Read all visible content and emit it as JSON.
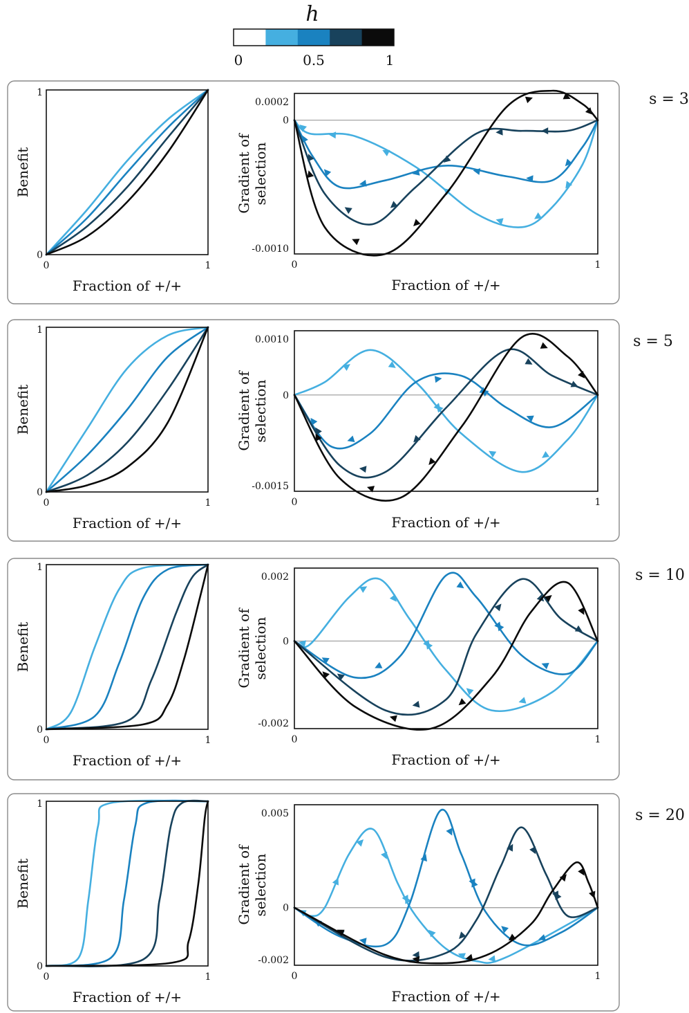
{
  "colorbar": {
    "title": "h",
    "ticks": [
      "0",
      "0.5",
      "1"
    ],
    "colors": [
      "#ffffff",
      "#45afe0",
      "#1a82c0",
      "#18425c",
      "#0b0b0b"
    ]
  },
  "series_colors": {
    "h0.25": "#45afe0",
    "h0.5": "#1a82c0",
    "h0.75": "#18425c",
    "h1": "#0b0b0b"
  },
  "chart_data": [
    {
      "panel": "s = 3",
      "type": "line",
      "xlabel": "Fraction of +/+",
      "ylabel": "Benefit",
      "xticks": [
        "0",
        "1"
      ],
      "yticks": [
        "0",
        "1"
      ],
      "xlim": [
        0,
        1
      ],
      "ylim": [
        0,
        1
      ],
      "series": [
        {
          "h": 0.25,
          "color": "#45afe0",
          "x": [
            0,
            0.25,
            0.5,
            0.75,
            1
          ],
          "y": [
            0,
            0.27,
            0.57,
            0.82,
            1
          ]
        },
        {
          "h": 0.5,
          "color": "#1a82c0",
          "x": [
            0,
            0.25,
            0.5,
            0.75,
            1
          ],
          "y": [
            0,
            0.22,
            0.5,
            0.77,
            1
          ]
        },
        {
          "h": 0.75,
          "color": "#18425c",
          "x": [
            0,
            0.25,
            0.5,
            0.75,
            1
          ],
          "y": [
            0,
            0.17,
            0.41,
            0.71,
            1
          ]
        },
        {
          "h": 1,
          "color": "#0b0b0b",
          "x": [
            0,
            0.25,
            0.5,
            0.75,
            1
          ],
          "y": [
            0,
            0.11,
            0.32,
            0.62,
            1
          ]
        }
      ]
    },
    {
      "panel": "s = 3",
      "type": "line",
      "xlabel": "Fraction of +/+",
      "ylabel": "Gradient of selection",
      "xticks": [
        "0",
        "1"
      ],
      "yticks": [
        "0.0002",
        "0",
        "-0.0010"
      ],
      "xlim": [
        0,
        1
      ],
      "ylim": [
        -0.001,
        0.0002
      ],
      "series": [
        {
          "h": 0.25,
          "color": "#45afe0",
          "x": [
            0,
            0.05,
            0.2,
            0.4,
            0.6,
            0.75,
            0.85,
            0.95,
            1
          ],
          "y": [
            0,
            -0.0001,
            -0.00012,
            -0.00035,
            -0.0007,
            -0.0008,
            -0.00065,
            -0.00033,
            0
          ]
        },
        {
          "h": 0.5,
          "color": "#1a82c0",
          "x": [
            0,
            0.06,
            0.15,
            0.3,
            0.5,
            0.7,
            0.85,
            0.95,
            1
          ],
          "y": [
            0,
            -0.00027,
            -0.0005,
            -0.00045,
            -0.00034,
            -0.00042,
            -0.00045,
            -0.0002,
            0
          ]
        },
        {
          "h": 0.75,
          "color": "#18425c",
          "x": [
            0,
            0.1,
            0.25,
            0.4,
            0.6,
            0.75,
            0.9,
            1
          ],
          "y": [
            0,
            -0.00055,
            -0.00078,
            -0.0005,
            -0.0001,
            -8e-05,
            -8e-05,
            0
          ]
        },
        {
          "h": 1,
          "color": "#0b0b0b",
          "x": [
            0,
            0.1,
            0.3,
            0.5,
            0.7,
            0.85,
            0.95,
            1
          ],
          "y": [
            0,
            -0.0008,
            -0.001,
            -0.00055,
            0.0001,
            0.00022,
            0.00012,
            0
          ]
        }
      ]
    },
    {
      "panel": "s = 5",
      "type": "line",
      "xlabel": "Fraction of +/+",
      "ylabel": "Benefit",
      "xticks": [
        "0",
        "1"
      ],
      "yticks": [
        "0",
        "1"
      ],
      "xlim": [
        0,
        1
      ],
      "ylim": [
        0,
        1
      ],
      "series": [
        {
          "h": 0.25,
          "color": "#45afe0",
          "x": [
            0,
            0.25,
            0.5,
            0.75,
            1
          ],
          "y": [
            0,
            0.38,
            0.75,
            0.95,
            1
          ]
        },
        {
          "h": 0.5,
          "color": "#1a82c0",
          "x": [
            0,
            0.25,
            0.5,
            0.75,
            1
          ],
          "y": [
            0,
            0.22,
            0.5,
            0.82,
            1
          ]
        },
        {
          "h": 0.75,
          "color": "#18425c",
          "x": [
            0,
            0.25,
            0.5,
            0.75,
            1
          ],
          "y": [
            0,
            0.1,
            0.3,
            0.62,
            1
          ]
        },
        {
          "h": 1,
          "color": "#0b0b0b",
          "x": [
            0,
            0.25,
            0.5,
            0.75,
            1
          ],
          "y": [
            0,
            0.04,
            0.15,
            0.42,
            1
          ]
        }
      ]
    },
    {
      "panel": "s = 5",
      "type": "line",
      "xlabel": "Fraction of +/+",
      "ylabel": "Gradient of selection",
      "xticks": [
        "0",
        "1"
      ],
      "yticks": [
        "0.0010",
        "0",
        "-0.0015"
      ],
      "xlim": [
        0,
        1
      ],
      "ylim": [
        -0.0015,
        0.001
      ],
      "series": [
        {
          "h": 0.25,
          "color": "#45afe0",
          "x": [
            0,
            0.1,
            0.25,
            0.4,
            0.55,
            0.75,
            0.9,
            1
          ],
          "y": [
            0,
            0.0002,
            0.0007,
            0.0002,
            -0.0006,
            -0.0012,
            -0.0007,
            0
          ]
        },
        {
          "h": 0.5,
          "color": "#1a82c0",
          "x": [
            0,
            0.12,
            0.25,
            0.4,
            0.55,
            0.7,
            0.85,
            1
          ],
          "y": [
            0,
            -0.0008,
            -0.0006,
            0.0002,
            0.0003,
            -0.0002,
            -0.0005,
            0
          ]
        },
        {
          "h": 0.75,
          "color": "#18425c",
          "x": [
            0,
            0.15,
            0.3,
            0.5,
            0.7,
            0.85,
            1
          ],
          "y": [
            0,
            -0.0011,
            -0.0012,
            -0.0002,
            0.0007,
            0.0003,
            0
          ]
        },
        {
          "h": 1,
          "color": "#0b0b0b",
          "x": [
            0,
            0.15,
            0.35,
            0.55,
            0.75,
            0.9,
            1
          ],
          "y": [
            0,
            -0.0013,
            -0.0016,
            -0.0005,
            0.0009,
            0.0006,
            0
          ]
        }
      ]
    },
    {
      "panel": "s = 10",
      "type": "line",
      "xlabel": "Fraction of +/+",
      "ylabel": "Benefit",
      "xticks": [
        "0",
        "1"
      ],
      "yticks": [
        "0",
        "1"
      ],
      "xlim": [
        0,
        1
      ],
      "ylim": [
        0,
        1
      ],
      "series": [
        {
          "h": 0.25,
          "color": "#45afe0",
          "x": [
            0,
            0.15,
            0.3,
            0.45,
            0.6,
            1
          ],
          "y": [
            0,
            0.1,
            0.5,
            0.85,
            0.98,
            1
          ]
        },
        {
          "h": 0.5,
          "color": "#1a82c0",
          "x": [
            0,
            0.3,
            0.45,
            0.6,
            0.75,
            1
          ],
          "y": [
            0,
            0.08,
            0.4,
            0.8,
            0.97,
            1
          ]
        },
        {
          "h": 0.75,
          "color": "#18425c",
          "x": [
            0,
            0.5,
            0.65,
            0.8,
            0.9,
            1
          ],
          "y": [
            0,
            0.05,
            0.3,
            0.7,
            0.92,
            1
          ]
        },
        {
          "h": 1,
          "color": "#0b0b0b",
          "x": [
            0,
            0.6,
            0.75,
            0.85,
            0.95,
            1
          ],
          "y": [
            0,
            0.03,
            0.15,
            0.42,
            0.8,
            1
          ]
        }
      ]
    },
    {
      "panel": "s = 10",
      "type": "line",
      "xlabel": "Fraction of +/+",
      "ylabel": "Gradient of selection",
      "xticks": [
        "0",
        "1"
      ],
      "yticks": [
        "0.002",
        "0",
        "-0.002"
      ],
      "xlim": [
        0,
        1
      ],
      "ylim": [
        -0.0024,
        0.002
      ],
      "series": [
        {
          "h": 0.25,
          "color": "#45afe0",
          "x": [
            0,
            0.05,
            0.18,
            0.28,
            0.38,
            0.5,
            0.65,
            0.85,
            1
          ],
          "y": [
            0,
            -0.0001,
            0.0012,
            0.0017,
            0.0006,
            -0.0008,
            -0.0019,
            -0.0014,
            0
          ]
        },
        {
          "h": 0.5,
          "color": "#1a82c0",
          "x": [
            0,
            0.2,
            0.35,
            0.5,
            0.6,
            0.75,
            0.9,
            1
          ],
          "y": [
            0,
            -0.001,
            -0.0004,
            0.0018,
            0.0012,
            -0.0004,
            -0.0009,
            0
          ]
        },
        {
          "h": 0.75,
          "color": "#18425c",
          "x": [
            0,
            0.3,
            0.5,
            0.6,
            0.75,
            0.88,
            1
          ],
          "y": [
            0,
            -0.0019,
            -0.0016,
            0.0002,
            0.0017,
            0.0006,
            0
          ]
        },
        {
          "h": 1,
          "color": "#0b0b0b",
          "x": [
            0,
            0.2,
            0.45,
            0.65,
            0.78,
            0.9,
            1
          ],
          "y": [
            0,
            -0.0018,
            -0.0024,
            -0.001,
            0.0008,
            0.0016,
            0
          ]
        }
      ]
    },
    {
      "panel": "s = 20",
      "type": "line",
      "xlabel": "Fraction of +/+",
      "ylabel": "Benefit",
      "xticks": [
        "0",
        "1"
      ],
      "yticks": [
        "0",
        "1"
      ],
      "xlim": [
        0,
        1
      ],
      "ylim": [
        0,
        1
      ],
      "series": [
        {
          "h": 0.25,
          "color": "#45afe0",
          "x": [
            0,
            0.2,
            0.26,
            0.32,
            0.4,
            1
          ],
          "y": [
            0,
            0.05,
            0.4,
            0.85,
            0.99,
            1
          ]
        },
        {
          "h": 0.5,
          "color": "#1a82c0",
          "x": [
            0,
            0.4,
            0.48,
            0.55,
            0.62,
            1
          ],
          "y": [
            0,
            0.05,
            0.4,
            0.85,
            0.99,
            1
          ]
        },
        {
          "h": 0.75,
          "color": "#18425c",
          "x": [
            0,
            0.6,
            0.7,
            0.77,
            0.84,
            1
          ],
          "y": [
            0,
            0.04,
            0.4,
            0.85,
            0.99,
            1
          ]
        },
        {
          "h": 1,
          "color": "#0b0b0b",
          "x": [
            0,
            0.78,
            0.88,
            0.94,
            0.98,
            1
          ],
          "y": [
            0,
            0.02,
            0.15,
            0.5,
            0.9,
            1
          ]
        }
      ]
    },
    {
      "panel": "s = 20",
      "type": "line",
      "xlabel": "Fraction of +/+",
      "ylabel": "Gradient of selection",
      "xticks": [
        "0",
        "1"
      ],
      "yticks": [
        "0.005",
        "0",
        "-0.002"
      ],
      "xlim": [
        0,
        1
      ],
      "ylim": [
        -0.0028,
        0.005
      ],
      "series": [
        {
          "h": 0.25,
          "color": "#45afe0",
          "x": [
            0,
            0.05,
            0.1,
            0.18,
            0.26,
            0.34,
            0.4,
            0.5,
            0.6,
            0.7,
            1
          ],
          "y": [
            0,
            -0.0004,
            0,
            0.0026,
            0.0038,
            0.0012,
            -0.0004,
            -0.002,
            -0.0026,
            -0.0024,
            0
          ]
        },
        {
          "h": 0.5,
          "color": "#1a82c0",
          "x": [
            0,
            0.15,
            0.3,
            0.38,
            0.48,
            0.55,
            0.63,
            0.75,
            0.88,
            1
          ],
          "y": [
            0,
            -0.0014,
            -0.0018,
            0.0002,
            0.0047,
            0.0026,
            -0.0002,
            -0.0018,
            -0.0012,
            0
          ]
        },
        {
          "h": 0.75,
          "color": "#18425c",
          "x": [
            0,
            0.3,
            0.5,
            0.6,
            0.68,
            0.75,
            0.83,
            0.9,
            1
          ],
          "y": [
            0,
            -0.0024,
            -0.0022,
            -0.0006,
            0.002,
            0.0039,
            0.0016,
            -0.0004,
            0
          ]
        },
        {
          "h": 1,
          "color": "#0b0b0b",
          "x": [
            0,
            0.3,
            0.5,
            0.65,
            0.78,
            0.85,
            0.93,
            0.97,
            1
          ],
          "y": [
            0,
            -0.0023,
            -0.0027,
            -0.0022,
            -0.0008,
            0.0008,
            0.0022,
            0.0012,
            0
          ]
        }
      ]
    }
  ]
}
